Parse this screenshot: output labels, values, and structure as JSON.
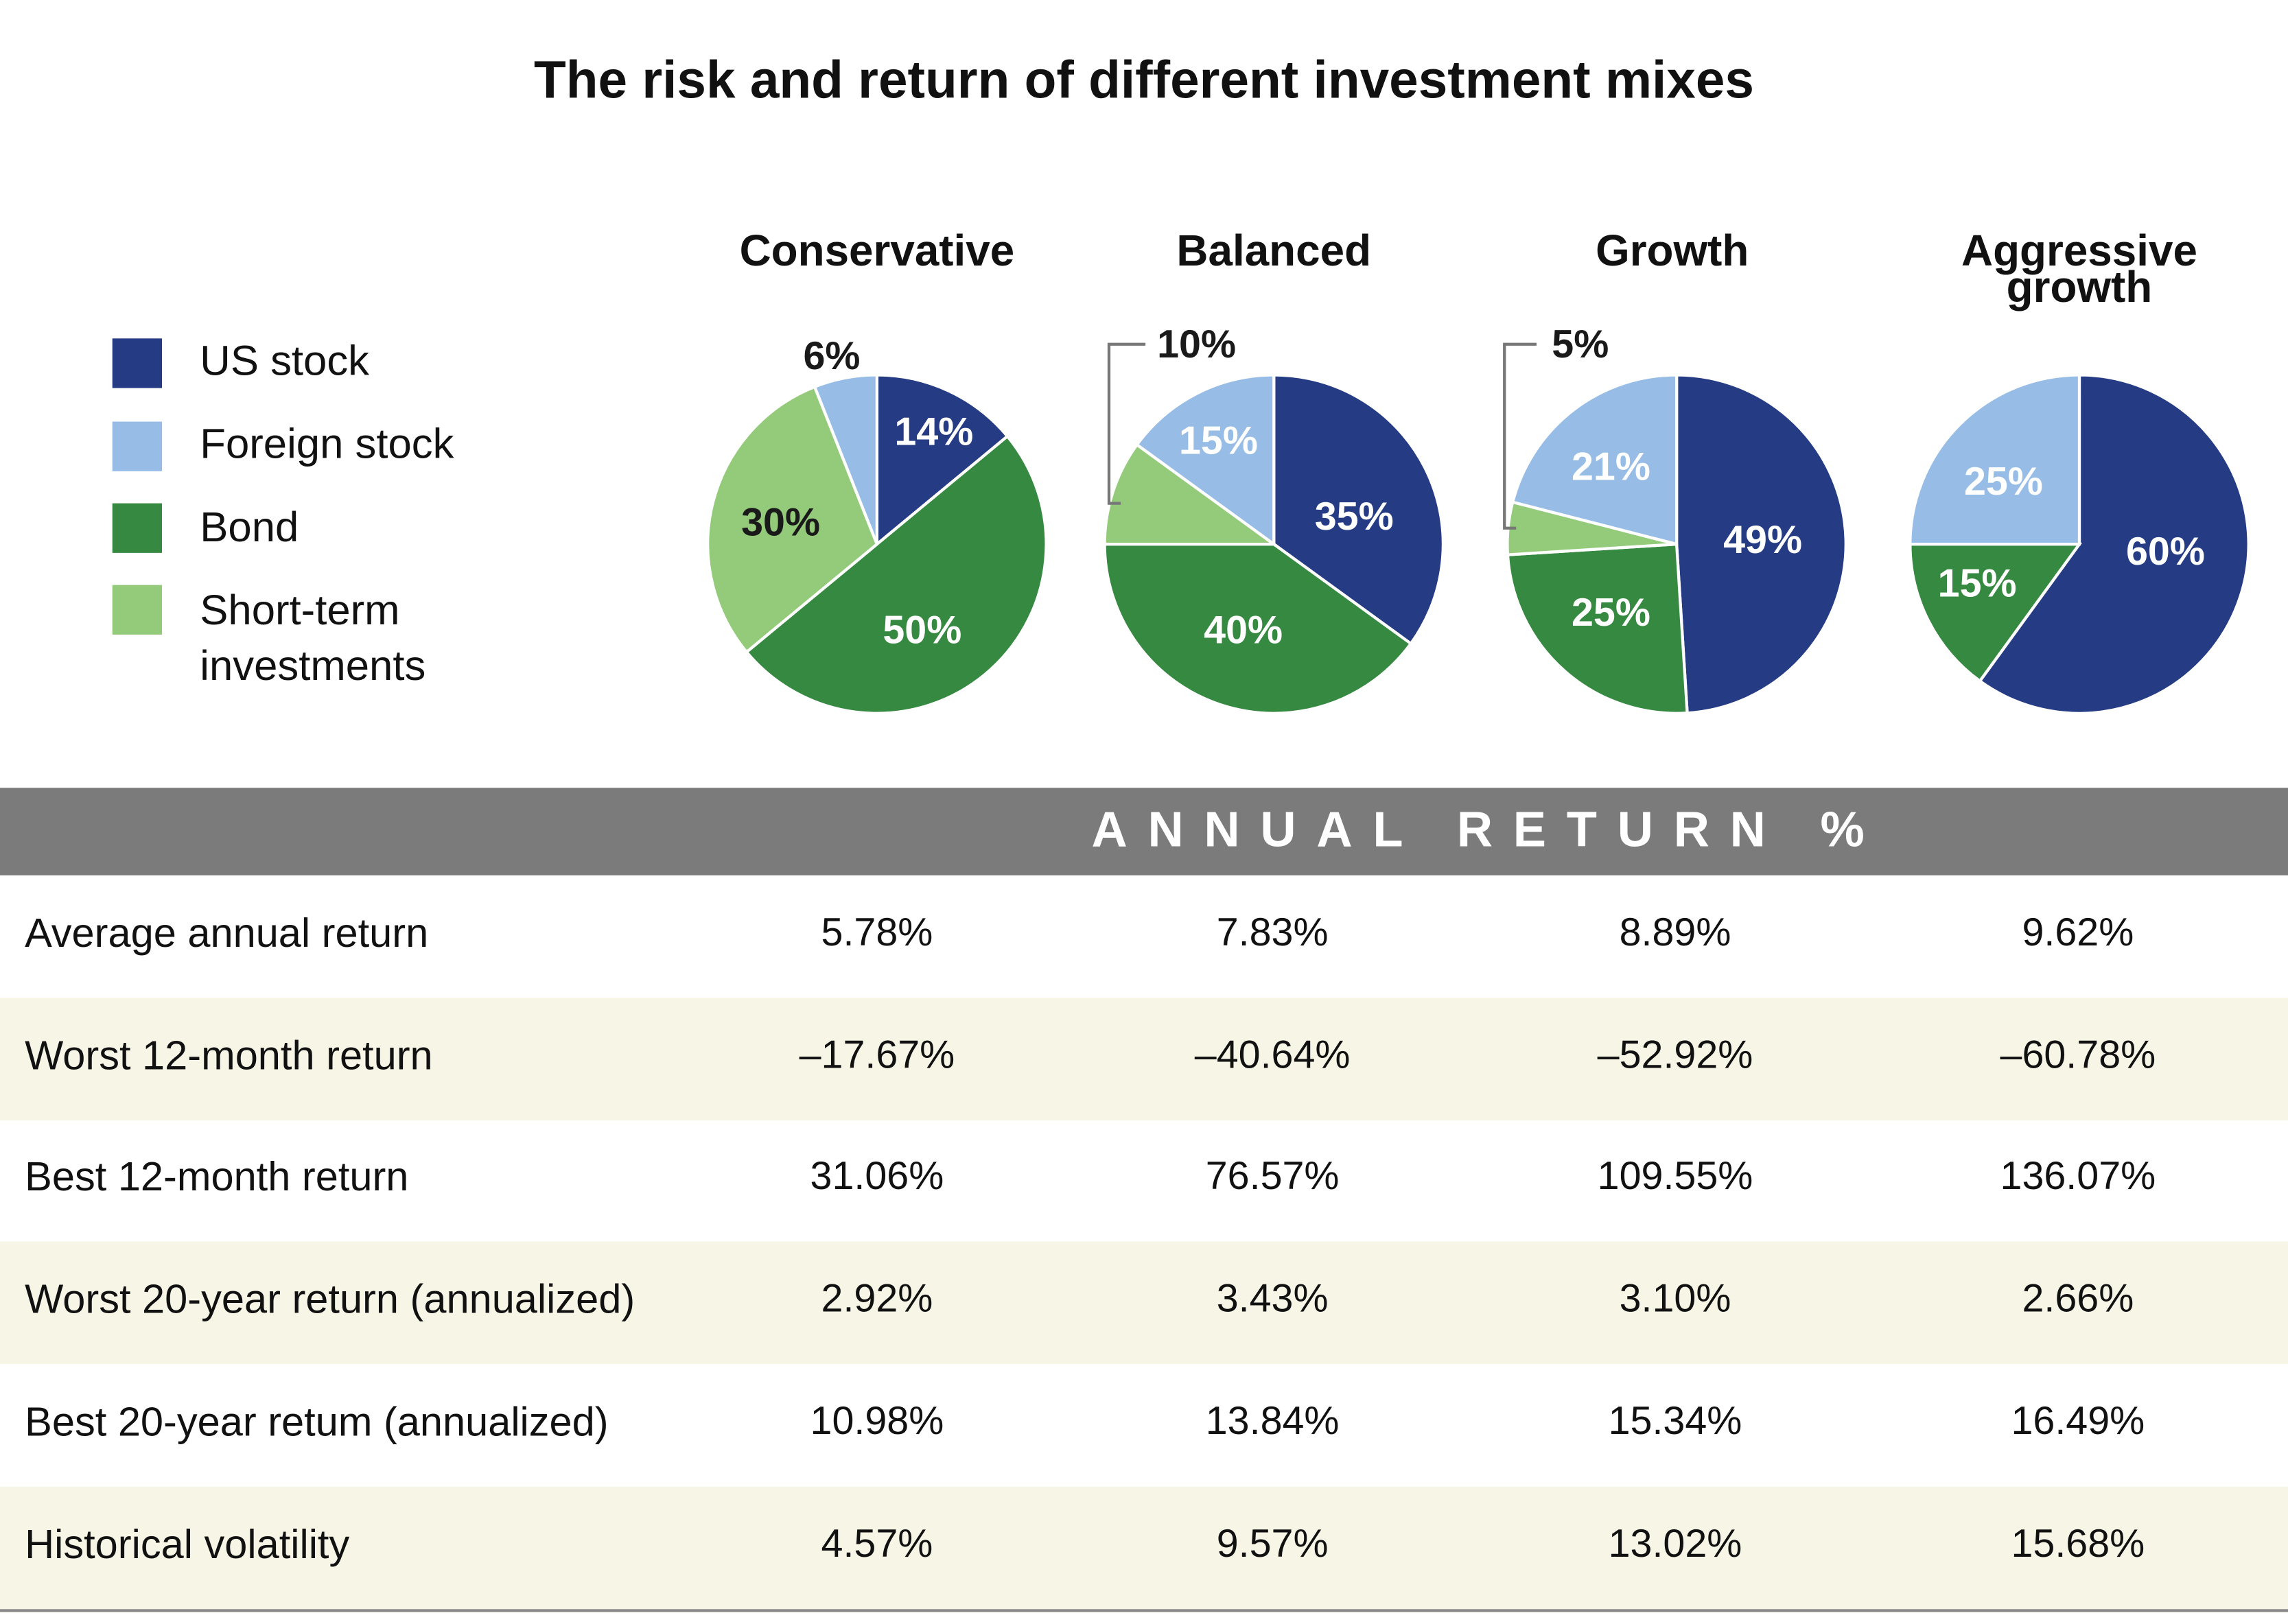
{
  "chart_data": {
    "type": "pie",
    "title": "The risk and return of different investment mixes",
    "legend": {
      "placement": "left",
      "entries": [
        "US stock",
        "Foreign stock",
        "Bond",
        "Short-term investments"
      ]
    },
    "colors": {
      "US stock": "#253b84",
      "Foreign stock": "#97bde6",
      "Bond": "#368940",
      "Short-term investments": "#93cb7b"
    },
    "pies": [
      {
        "title": "Conservative",
        "slices": [
          {
            "category": "US stock",
            "value": 14,
            "label": "14%"
          },
          {
            "category": "Bond",
            "value": 50,
            "label": "50%"
          },
          {
            "category": "Short-term investments",
            "value": 30,
            "label": "30%"
          },
          {
            "category": "Foreign stock",
            "value": 6,
            "label": "6%"
          }
        ]
      },
      {
        "title": "Balanced",
        "slices": [
          {
            "category": "US stock",
            "value": 35,
            "label": "35%"
          },
          {
            "category": "Bond",
            "value": 40,
            "label": "40%"
          },
          {
            "category": "Short-term investments",
            "value": 10,
            "label": "10%"
          },
          {
            "category": "Foreign stock",
            "value": 15,
            "label": "15%"
          }
        ]
      },
      {
        "title": "Growth",
        "slices": [
          {
            "category": "US stock",
            "value": 49,
            "label": "49%"
          },
          {
            "category": "Bond",
            "value": 25,
            "label": "25%"
          },
          {
            "category": "Short-term investments",
            "value": 5,
            "label": "5%"
          },
          {
            "category": "Foreign stock",
            "value": 21,
            "label": "21%"
          }
        ]
      },
      {
        "title": "Aggressive growth",
        "title_lines": [
          "Aggressive",
          "growth"
        ],
        "slices": [
          {
            "category": "US stock",
            "value": 60,
            "label": "60%"
          },
          {
            "category": "Bond",
            "value": 15,
            "label": "15%"
          },
          {
            "category": "Foreign stock",
            "value": 25,
            "label": "25%"
          }
        ]
      }
    ]
  },
  "table": {
    "header": "ANNUAL RETURN %",
    "header_color": "#7b7b7b",
    "alt_row_color": "#f7f6e6",
    "rows": [
      {
        "label": "Average annual return",
        "values": [
          "5.78%",
          "7.83%",
          "8.89%",
          "9.62%"
        ]
      },
      {
        "label": "Worst 12-month return",
        "values": [
          "–17.67%",
          "–40.64%",
          "–52.92%",
          "–60.78%"
        ]
      },
      {
        "label": "Best 12-month return",
        "values": [
          "31.06%",
          "76.57%",
          "109.55%",
          "136.07%"
        ]
      },
      {
        "label": "Worst 20-year return (annualized)",
        "values": [
          "2.92%",
          "3.43%",
          "3.10%",
          "2.66%"
        ]
      },
      {
        "label": "Best 20-year retum (annualized)",
        "values": [
          "10.98%",
          "13.84%",
          "15.34%",
          "16.49%"
        ]
      },
      {
        "label": "Historical volatility",
        "values": [
          "4.57%",
          "9.57%",
          "13.02%",
          "15.68%"
        ]
      }
    ]
  }
}
